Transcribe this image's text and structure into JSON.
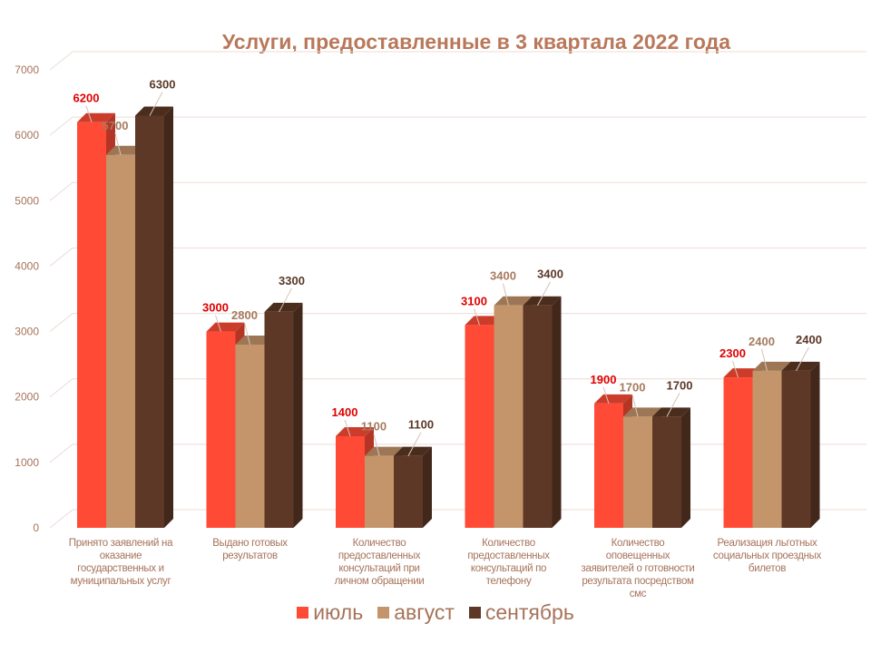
{
  "chart_data": {
    "type": "bar",
    "title": "Услуги, предоставленные в 3 квартала 2022 года",
    "categories": [
      "Принято заявлений на оказание государственных и муниципальных услуг",
      "Выдано готовых результатов",
      "Количество предоставленных консультаций  при личном обращении",
      "Количество предоставленных консультаций  по телефону",
      "Количество оповещенных заявителей о готовности результата посредством смс",
      "Реализация льготных социальных проездных билетов"
    ],
    "series": [
      {
        "name": "июль",
        "values": [
          6200,
          3000,
          1400,
          3100,
          1900,
          2300
        ],
        "color": "#ff4b35",
        "label_color": "#e00000"
      },
      {
        "name": "август",
        "values": [
          5700,
          2800,
          1100,
          3400,
          1700,
          2400
        ],
        "color": "#c4956a",
        "label_color": "#a57a5f"
      },
      {
        "name": "сентябрь",
        "values": [
          6300,
          3300,
          1100,
          3400,
          1700,
          2400
        ],
        "color": "#5e3826",
        "label_color": "#5a3828"
      }
    ],
    "yticks": [
      "0",
      "1000",
      "2000",
      "3000",
      "4000",
      "5000",
      "6000",
      "7000"
    ],
    "ylim": [
      0,
      7000
    ],
    "grid": true,
    "legend": "bottom",
    "xlabel": "",
    "ylabel": ""
  }
}
